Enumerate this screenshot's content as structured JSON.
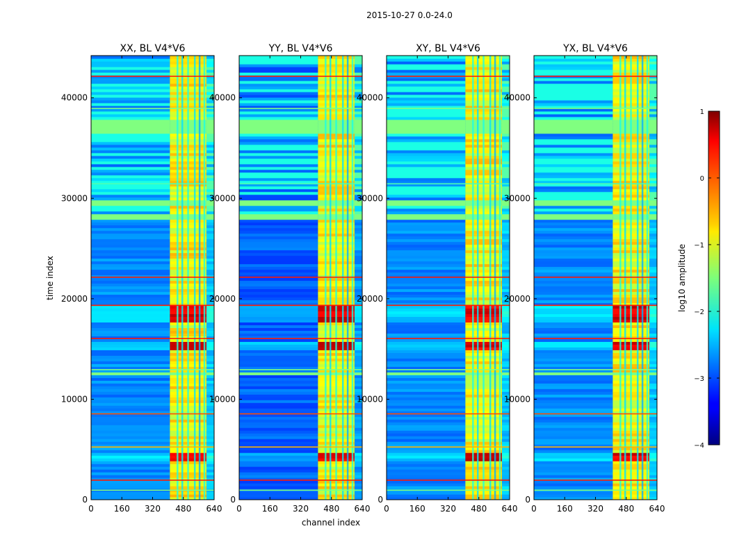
{
  "figure": {
    "suptitle": "2015-10-27 0.0-24.0",
    "xlabel": "channel index",
    "ylabel": "time index"
  },
  "chart_data": {
    "type": "heatmap",
    "title": "2015-10-27 0.0-24.0",
    "xlabel": "channel index",
    "ylabel": "time index",
    "xlim": [
      0,
      640
    ],
    "ylim": [
      0,
      44200
    ],
    "xticks": [
      0,
      160,
      320,
      480,
      640
    ],
    "yticks": [
      0,
      10000,
      20000,
      30000,
      40000
    ],
    "panels": [
      {
        "title": "XX, BL V4*V6",
        "show_ylabel": true
      },
      {
        "title": "YY, BL V4*V6",
        "show_ylabel": false
      },
      {
        "title": "XY, BL V4*V6",
        "show_ylabel": false
      },
      {
        "title": "YX, BL V4*V6",
        "show_ylabel": false
      }
    ],
    "bright_channel_range": [
      410,
      600
    ],
    "flagged_time_bands": [
      [
        36500,
        37900
      ],
      [
        29300,
        29800
      ],
      [
        27800,
        28500
      ],
      [
        12300,
        12800
      ]
    ],
    "hot_time_bands": [
      [
        3800,
        4600
      ],
      [
        14900,
        15800
      ],
      [
        17700,
        19200
      ]
    ],
    "colorbar": {
      "label": "log10 amplitude",
      "min": -4,
      "max": 1,
      "ticks": [
        1,
        0,
        -1,
        -2,
        -3,
        -4
      ],
      "colormap": "jet"
    }
  }
}
